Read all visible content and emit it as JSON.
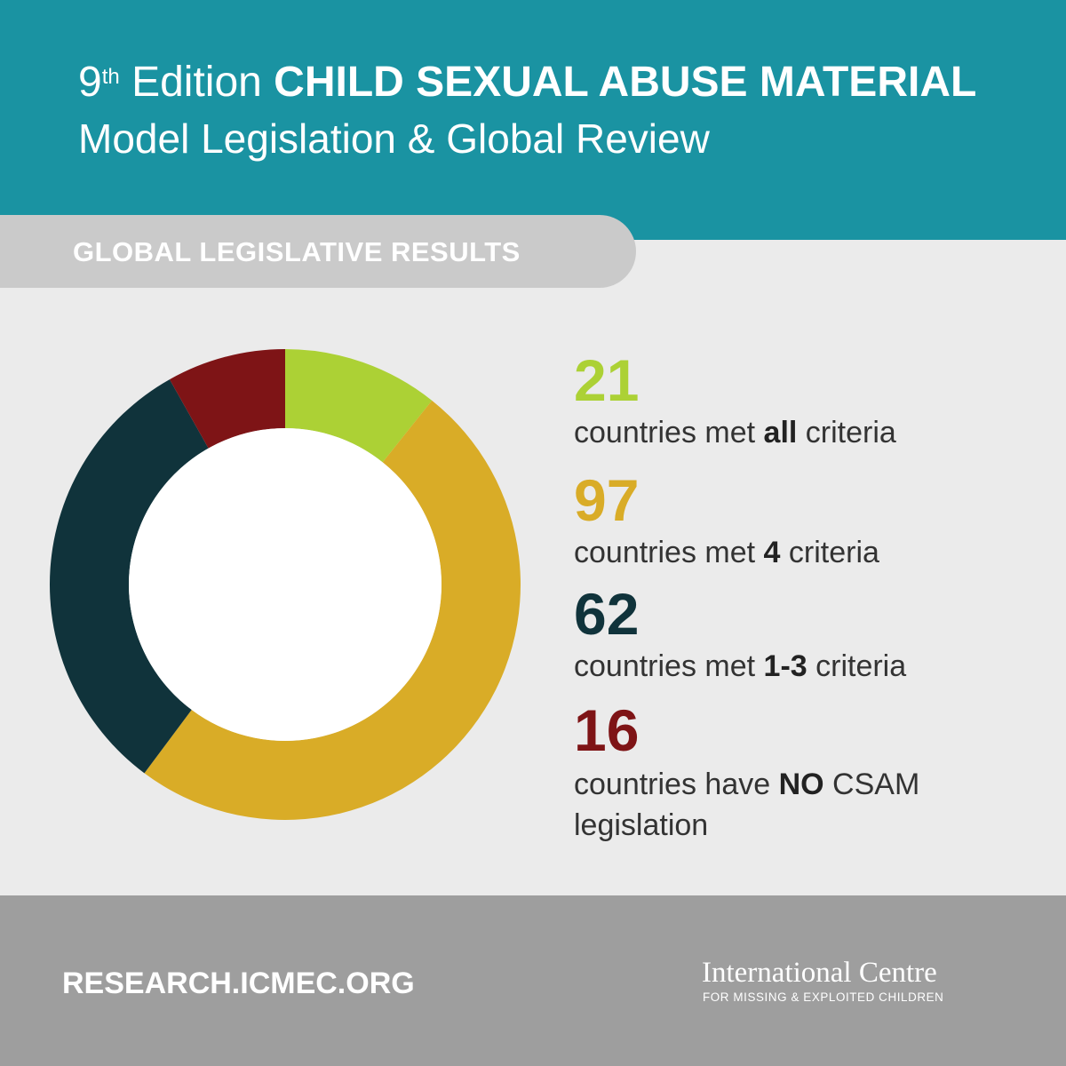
{
  "header": {
    "edition_number": "9",
    "edition_suffix": "th",
    "edition_word": "Edition",
    "title_bold": "CHILD SEXUAL ABUSE MATERIAL",
    "subtitle": "Model Legislation & Global Review"
  },
  "section": {
    "label": "GLOBAL LEGISLATIVE RESULTS"
  },
  "chart_data": {
    "type": "pie",
    "donut": true,
    "title": "GLOBAL LEGISLATIVE RESULTS",
    "categories": [
      "countries met all criteria",
      "countries met 4 criteria",
      "countries met 1-3 criteria",
      "countries have NO CSAM legislation"
    ],
    "values": [
      21,
      97,
      62,
      16
    ],
    "colors": [
      "#acd135",
      "#d9ac27",
      "#10333b",
      "#7e1416"
    ]
  },
  "stats": [
    {
      "value": "21",
      "pre": "countries met ",
      "bold": "all",
      "post": " criteria",
      "color": "#acd135"
    },
    {
      "value": "97",
      "pre": "countries met ",
      "bold": "4",
      "post": " criteria",
      "color": "#d9ac27"
    },
    {
      "value": "62",
      "pre": "countries met ",
      "bold": "1-3",
      "post": " criteria",
      "color": "#10333b"
    },
    {
      "value": "16",
      "pre": "countries have ",
      "bold": "NO",
      "post": " CSAM",
      "post2": "legislation",
      "color": "#7e1416"
    }
  ],
  "footer": {
    "url": "RESEARCH.ICMEC.ORG",
    "org_name": "International Centre",
    "org_tagline": "FOR MISSING & EXPLOITED CHILDREN"
  }
}
